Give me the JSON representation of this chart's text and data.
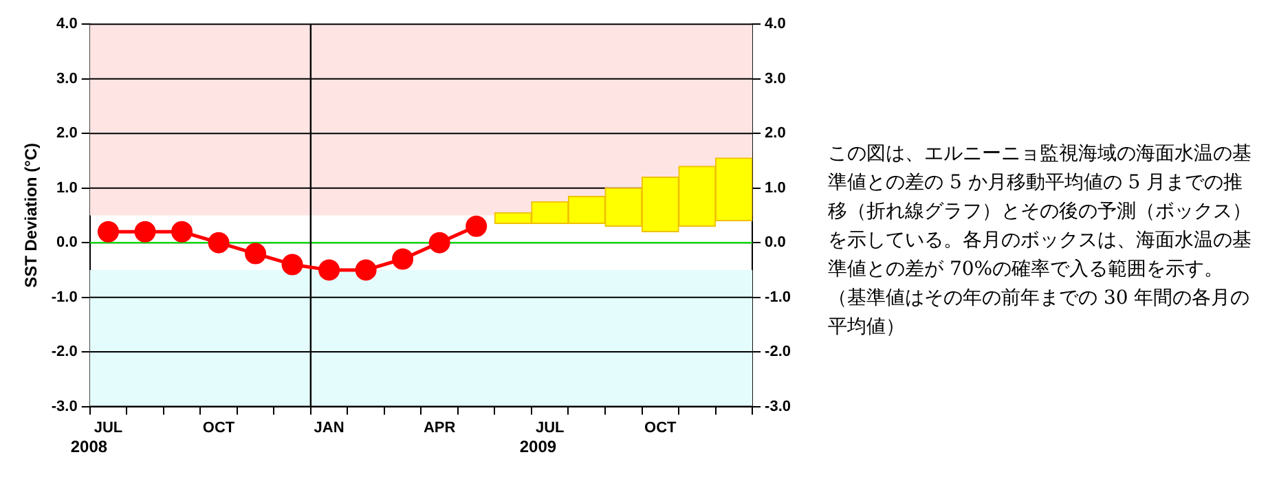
{
  "chart_data": {
    "type": "line",
    "ylabel": "SST Deviation (°C)",
    "categories": [
      "JUL",
      null,
      null,
      "OCT",
      null,
      null,
      "JAN",
      null,
      null,
      "APR",
      null,
      null,
      "JUL",
      null,
      null,
      "OCT",
      null,
      null
    ],
    "series": [
      {
        "color": "#ff0000",
        "values": [
          0.2,
          0.2,
          0.2,
          0.0,
          -0.2,
          -0.4,
          -0.5,
          -0.5,
          -0.3,
          0.0,
          0.3,
          null,
          null,
          null,
          null,
          null,
          null,
          null
        ]
      },
      {
        "type": "bar",
        "color": "#ffff00",
        "base": [
          null,
          null,
          null,
          null,
          null,
          null,
          null,
          null,
          null,
          null,
          null,
          0.35,
          0.35,
          0.35,
          0.3,
          0.2,
          0.3,
          0.4
        ],
        "values": [
          null,
          null,
          null,
          null,
          null,
          null,
          null,
          null,
          null,
          null,
          null,
          0.2,
          0.4,
          0.5,
          0.7,
          1.0,
          1.1,
          1.15
        ]
      }
    ],
    "ylim": [
      -3,
      4
    ],
    "yticks": [
      {
        "value": -3,
        "label": "-3.0"
      },
      {
        "value": -2,
        "label": "-2.0"
      },
      {
        "value": -1,
        "label": "-1.0"
      },
      {
        "value": 0,
        "label": "0.0"
      },
      {
        "value": 1,
        "label": "1.0"
      },
      {
        "value": 2,
        "label": "2.0"
      },
      {
        "value": 3,
        "label": "3.0"
      },
      {
        "value": 4,
        "label": "4.0"
      }
    ],
    "y2lim": [
      -3,
      4
    ],
    "y2ticks": [
      {
        "value": -3,
        "label": "-3.0"
      },
      {
        "value": -2,
        "label": "-2.0"
      },
      {
        "value": -1,
        "label": "-1.0"
      },
      {
        "value": 0,
        "label": "0.0"
      },
      {
        "value": 1,
        "label": "1.0"
      },
      {
        "value": 2,
        "label": "2.0"
      },
      {
        "value": 3,
        "label": "3.0"
      },
      {
        "value": 4,
        "label": "4.0"
      }
    ],
    "grid": "y",
    "marker": "circle",
    "legend": false,
    "bands": [
      {
        "axis": "y",
        "from": 0.5,
        "to": 4,
        "color": "#ffe4e4"
      },
      {
        "axis": "y",
        "from": -3,
        "to": -0.5,
        "color": "#e4fcfc"
      }
    ],
    "ref_lines": [
      {
        "axis": "y",
        "value": 0,
        "color": "#00dd00"
      },
      {
        "axis": "x",
        "value": "JAN",
        "color": "#000000"
      }
    ],
    "annotations": [
      "2008",
      "2009",
      "この図は、エルニーニョ監視海域の海面水温の基準値との差の 5 か月移動平均値の 5 月までの推移（折れ線グラフ）とその後の予測（ボックス）を示している。各月のボックスは、海面水温の基準値との差が 70%の確率で入る範囲を示す。（基準値はその年の前年までの 30 年間の各月の平均値）"
    ]
  }
}
